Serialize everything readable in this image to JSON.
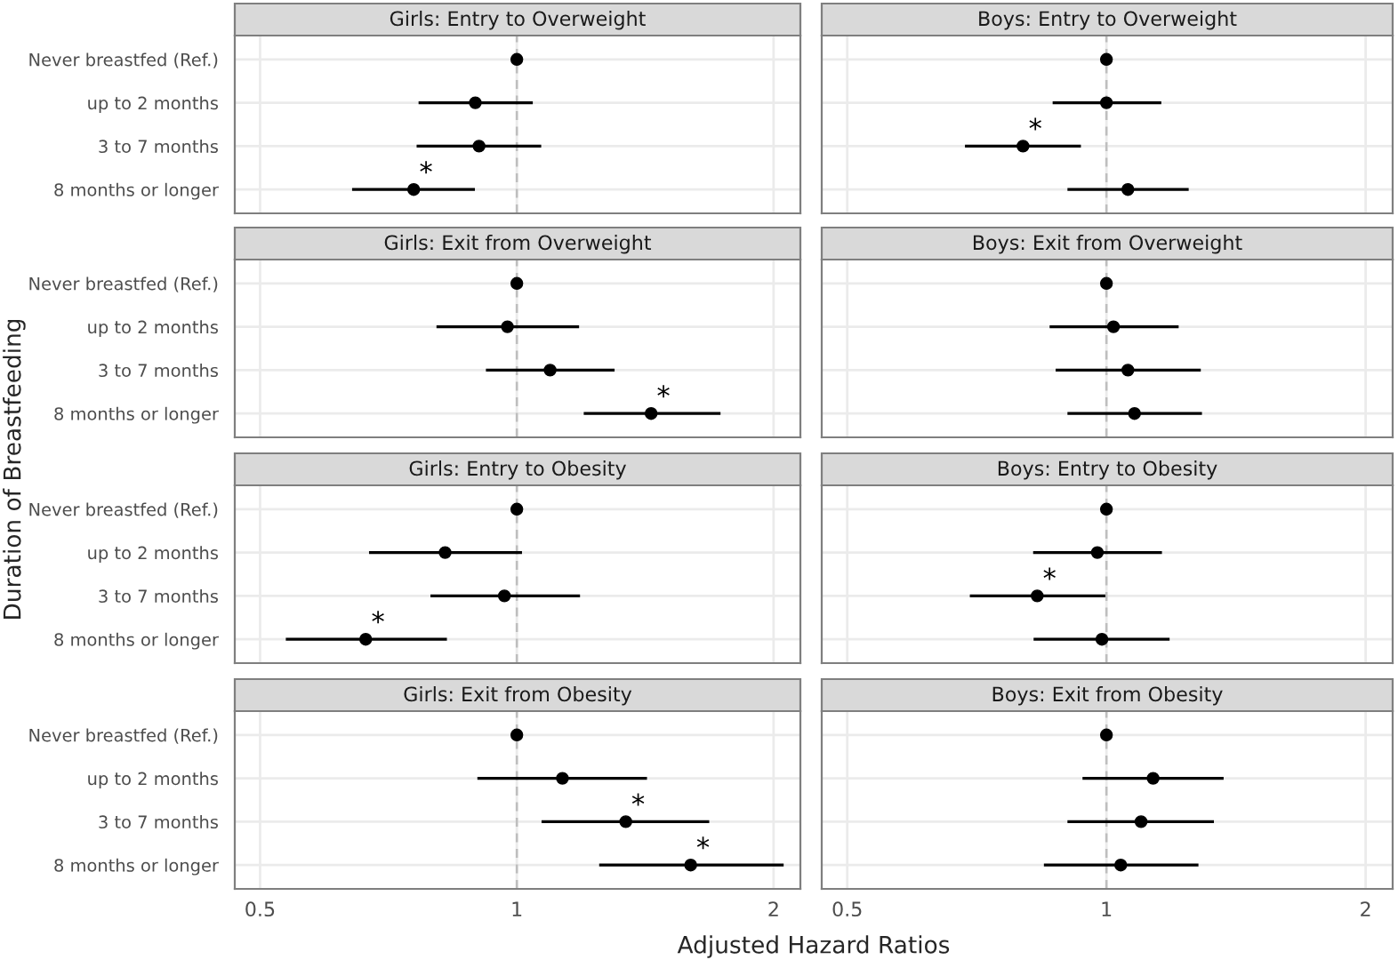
{
  "chart_data": [
    {
      "type": "scatter",
      "orientation": "horizontal",
      "title": "Girls: Entry to Overweight",
      "ylabel": "Duration of Breastfeeding",
      "categories": [
        "Never breastfed (Ref.)",
        "up to 2 months",
        "3 to 7 months",
        "8 months or longer"
      ],
      "series": [
        {
          "color": "#000000",
          "values": [
            1,
            0.894,
            0.903,
            0.757
          ],
          "errors": [
            null,
            [
              0.767,
              1.044
            ],
            [
              0.763,
              1.068
            ],
            [
              0.641,
              0.893
            ]
          ]
        }
      ],
      "annotations": [
        {
          "text": "*",
          "x": 0.757,
          "y": "8 months or longer"
        }
      ],
      "ref_lines": [
        {
          "axis": "x",
          "value": 1,
          "color": "#bebebe",
          "line_style": "dashed"
        }
      ],
      "log": "x",
      "xlim": [
        0.467,
        2.15
      ],
      "xticks": [
        0.5,
        1,
        2
      ],
      "grid": true,
      "marker": "circle",
      "tick_labels": "y"
    },
    {
      "type": "scatter",
      "orientation": "horizontal",
      "title": "Boys: Entry to Overweight",
      "categories": [
        "Never breastfed (Ref.)",
        "up to 2 months",
        "3 to 7 months",
        "8 months or longer"
      ],
      "series": [
        {
          "color": "#000000",
          "values": [
            1,
            1.0,
            0.8,
            1.059
          ],
          "errors": [
            null,
            [
              0.866,
              1.158
            ],
            [
              0.685,
              0.934
            ],
            [
              0.901,
              1.246
            ]
          ]
        }
      ],
      "annotations": [
        {
          "text": "*",
          "x": 0.8,
          "y": "3 to 7 months"
        }
      ],
      "ref_lines": [
        {
          "axis": "x",
          "value": 1,
          "color": "#bebebe",
          "line_style": "dashed"
        }
      ],
      "log": "x",
      "xlim": [
        0.467,
        2.15
      ],
      "xticks": [
        0.5,
        1,
        2
      ],
      "grid": true,
      "marker": "circle",
      "tick_labels": false
    },
    {
      "type": "scatter",
      "orientation": "horizontal",
      "title": "Girls: Exit from Overweight",
      "categories": [
        "Never breastfed (Ref.)",
        "up to 2 months",
        "3 to 7 months",
        "8 months or longer"
      ],
      "series": [
        {
          "color": "#000000",
          "values": [
            1,
            0.975,
            1.094,
            1.437
          ],
          "errors": [
            null,
            [
              0.805,
              1.183
            ],
            [
              0.92,
              1.302
            ],
            [
              1.198,
              1.733
            ]
          ]
        }
      ],
      "annotations": [
        {
          "text": "*",
          "x": 1.437,
          "y": "8 months or longer"
        }
      ],
      "ref_lines": [
        {
          "axis": "x",
          "value": 1,
          "color": "#bebebe",
          "line_style": "dashed"
        }
      ],
      "log": "x",
      "xlim": [
        0.467,
        2.15
      ],
      "xticks": [
        0.5,
        1,
        2
      ],
      "grid": true,
      "marker": "circle",
      "tick_labels": "y"
    },
    {
      "type": "scatter",
      "orientation": "horizontal",
      "title": "Boys: Exit from Overweight",
      "categories": [
        "Never breastfed (Ref.)",
        "up to 2 months",
        "3 to 7 months",
        "8 months or longer"
      ],
      "series": [
        {
          "color": "#000000",
          "values": [
            1,
            1.019,
            1.059,
            1.078
          ],
          "errors": [
            null,
            [
              0.859,
              1.213
            ],
            [
              0.873,
              1.287
            ],
            [
              0.901,
              1.291
            ]
          ]
        }
      ],
      "ref_lines": [
        {
          "axis": "x",
          "value": 1,
          "color": "#bebebe",
          "line_style": "dashed"
        }
      ],
      "log": "x",
      "xlim": [
        0.467,
        2.15
      ],
      "xticks": [
        0.5,
        1,
        2
      ],
      "grid": true,
      "marker": "circle",
      "tick_labels": false
    },
    {
      "type": "scatter",
      "orientation": "horizontal",
      "title": "Girls: Entry to Obesity",
      "categories": [
        "Never breastfed (Ref.)",
        "up to 2 months",
        "3 to 7 months",
        "8 months or longer"
      ],
      "series": [
        {
          "color": "#000000",
          "values": [
            1,
            0.824,
            0.967,
            0.665
          ],
          "errors": [
            null,
            [
              0.671,
              1.014
            ],
            [
              0.792,
              1.186
            ],
            [
              0.536,
              0.828
            ]
          ]
        }
      ],
      "annotations": [
        {
          "text": "*",
          "x": 0.665,
          "y": "8 months or longer"
        }
      ],
      "ref_lines": [
        {
          "axis": "x",
          "value": 1,
          "color": "#bebebe",
          "line_style": "dashed"
        }
      ],
      "log": "x",
      "xlim": [
        0.467,
        2.15
      ],
      "xticks": [
        0.5,
        1,
        2
      ],
      "grid": true,
      "marker": "circle",
      "tick_labels": "y"
    },
    {
      "type": "scatter",
      "orientation": "horizontal",
      "title": "Boys: Entry to Obesity",
      "categories": [
        "Never breastfed (Ref.)",
        "up to 2 months",
        "3 to 7 months",
        "8 months or longer"
      ],
      "series": [
        {
          "color": "#000000",
          "values": [
            1,
            0.976,
            0.831,
            0.988
          ],
          "errors": [
            null,
            [
              0.822,
              1.16
            ],
            [
              0.694,
              0.997
            ],
            [
              0.823,
              1.184
            ]
          ]
        }
      ],
      "annotations": [
        {
          "text": "*",
          "x": 0.831,
          "y": "3 to 7 months"
        }
      ],
      "ref_lines": [
        {
          "axis": "x",
          "value": 1,
          "color": "#bebebe",
          "line_style": "dashed"
        }
      ],
      "log": "x",
      "xlim": [
        0.467,
        2.15
      ],
      "xticks": [
        0.5,
        1,
        2
      ],
      "grid": true,
      "marker": "circle",
      "tick_labels": false
    },
    {
      "type": "scatter",
      "orientation": "horizontal",
      "title": "Girls: Exit from Obesity",
      "xlabel": "Adjusted Hazard Ratios",
      "categories": [
        "Never breastfed (Ref.)",
        "up to 2 months",
        "3 to 7 months",
        "8 months or longer"
      ],
      "series": [
        {
          "color": "#000000",
          "values": [
            1,
            1.131,
            1.342,
            1.599
          ],
          "errors": [
            null,
            [
              0.899,
              1.421
            ],
            [
              1.069,
              1.681
            ],
            [
              1.249,
              2.055
            ]
          ]
        }
      ],
      "annotations": [
        {
          "text": "*",
          "x": 1.342,
          "y": "3 to 7 months"
        },
        {
          "text": "*",
          "x": 1.599,
          "y": "8 months or longer"
        }
      ],
      "ref_lines": [
        {
          "axis": "x",
          "value": 1,
          "color": "#bebebe",
          "line_style": "dashed"
        }
      ],
      "log": "x",
      "xlim": [
        0.467,
        2.15
      ],
      "xticks": [
        0.5,
        1,
        2
      ],
      "grid": true,
      "marker": "circle"
    },
    {
      "type": "scatter",
      "orientation": "horizontal",
      "title": "Boys: Exit from Obesity",
      "categories": [
        "Never breastfed (Ref.)",
        "up to 2 months",
        "3 to 7 months",
        "8 months or longer"
      ],
      "series": [
        {
          "color": "#000000",
          "values": [
            1,
            1.133,
            1.097,
            1.039
          ],
          "errors": [
            null,
            [
              0.938,
              1.368
            ],
            [
              0.901,
              1.333
            ],
            [
              0.846,
              1.279
            ]
          ]
        }
      ],
      "ref_lines": [
        {
          "axis": "x",
          "value": 1,
          "color": "#bebebe",
          "line_style": "dashed"
        }
      ],
      "log": "x",
      "xlim": [
        0.467,
        2.15
      ],
      "xticks": [
        0.5,
        1,
        2
      ],
      "grid": true,
      "marker": "circle",
      "tick_labels": "x"
    }
  ]
}
